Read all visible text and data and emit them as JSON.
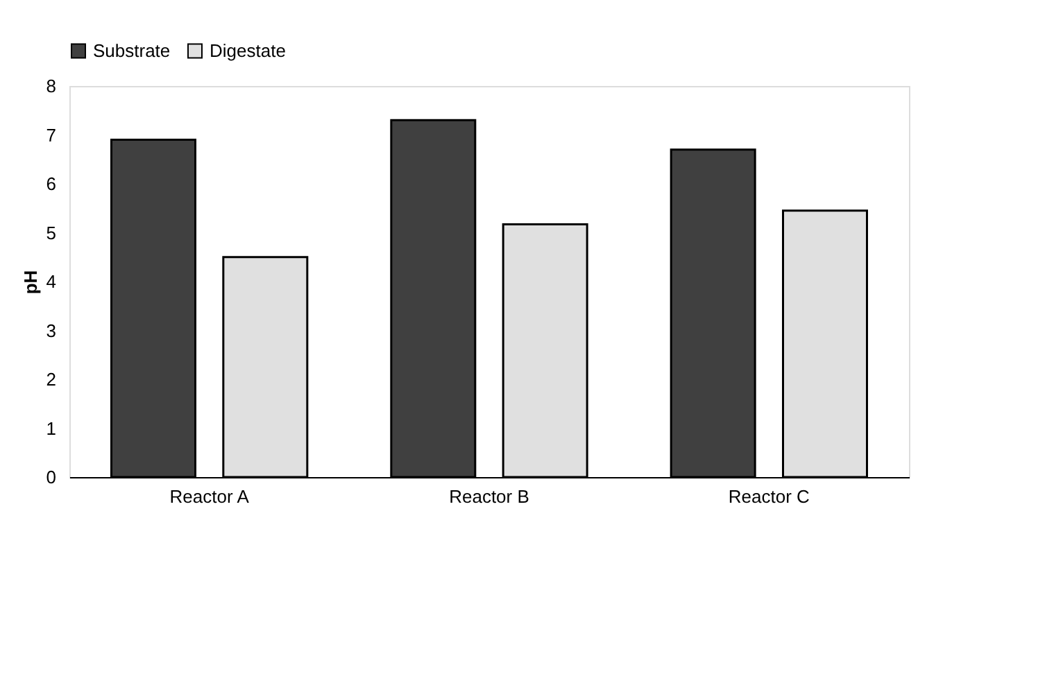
{
  "chart_data": {
    "type": "bar",
    "ylabel": "pH",
    "categories": [
      "Reactor A",
      "Reactor B",
      "Reactor C"
    ],
    "series": [
      {
        "name": "Substrate",
        "color": "#404040",
        "values": [
          6.9,
          7.3,
          6.7
        ]
      },
      {
        "name": "Digestate",
        "color": "#e0e0e0",
        "values": [
          4.5,
          5.17,
          5.45
        ]
      }
    ],
    "ylim": [
      0,
      8
    ],
    "yticks": [
      0,
      1,
      2,
      3,
      4,
      5,
      6,
      7,
      8
    ],
    "grid": false,
    "legend": "top"
  }
}
